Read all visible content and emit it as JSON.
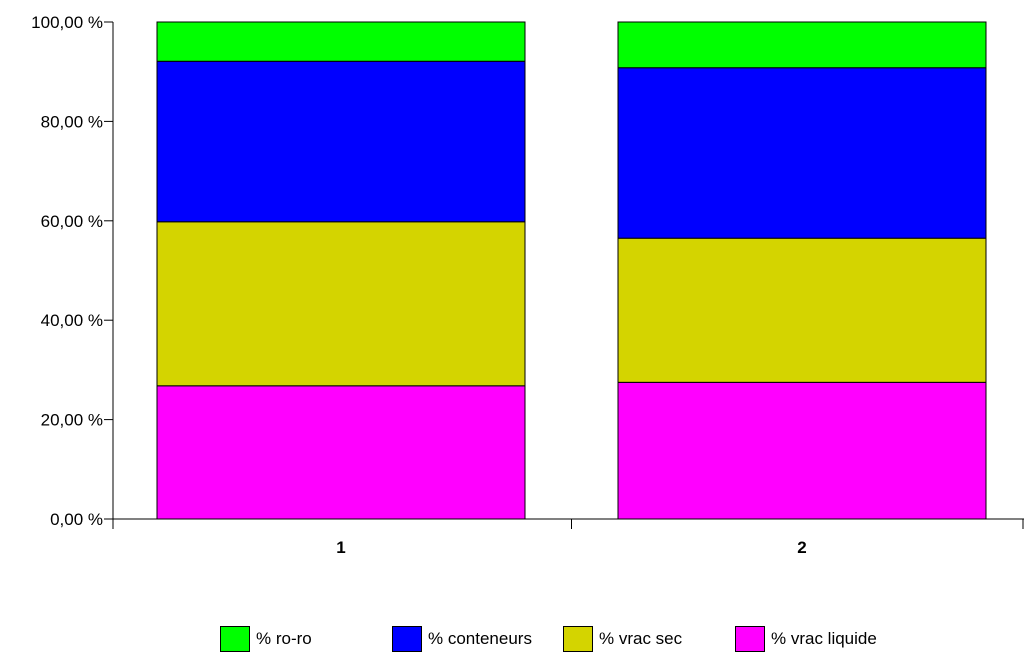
{
  "chart_data": {
    "type": "bar",
    "stacked": true,
    "categories": [
      "1",
      "2"
    ],
    "series": [
      {
        "name": "% vrac liquide",
        "color": "#ff00ff",
        "values": [
          26.8,
          27.5
        ]
      },
      {
        "name": "% vrac sec",
        "color": "#d4d400",
        "values": [
          33.0,
          29.0
        ]
      },
      {
        "name": "% conteneurs",
        "color": "#0000ff",
        "values": [
          32.3,
          34.3
        ]
      },
      {
        "name": "% ro-ro",
        "color": "#00ff00",
        "values": [
          7.9,
          9.2
        ]
      }
    ],
    "legend_order": [
      3,
      2,
      1,
      0
    ],
    "yticks": [
      "0,00 %",
      "20,00 %",
      "40,00 %",
      "60,00 %",
      "80,00 %",
      "100,00 %"
    ],
    "ylim": [
      0,
      100
    ],
    "legend_position": "bottom",
    "grid": false
  }
}
